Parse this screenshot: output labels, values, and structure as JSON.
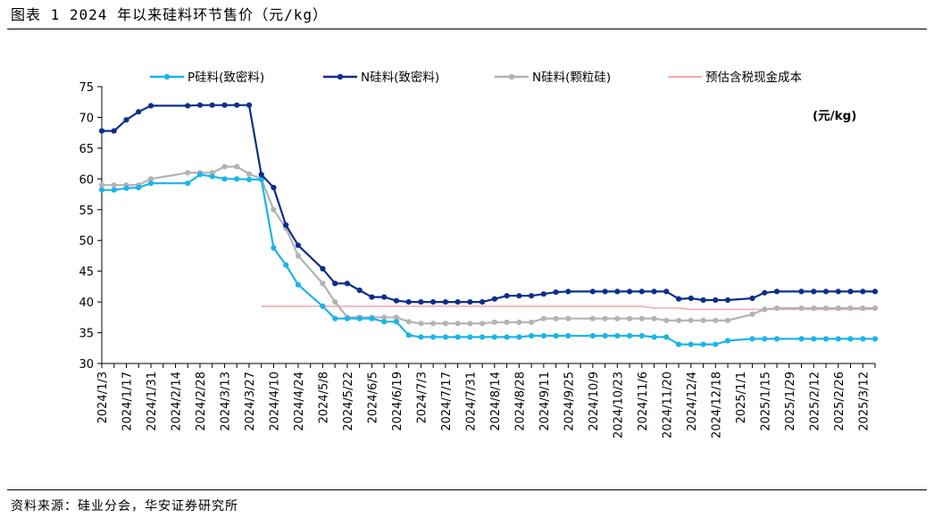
{
  "figure_title": "图表 1 2024 年以来硅料环节售价（元/kg）",
  "source_note": "资料来源：硅业分会，华安证券研究所",
  "chart_data": {
    "type": "line",
    "unit_label": "(元/kg)",
    "ylim": [
      30,
      75
    ],
    "yticks": [
      30,
      35,
      40,
      45,
      50,
      55,
      60,
      65,
      70,
      75
    ],
    "legend_position": "top",
    "x_tick_labels": [
      "2024/1/3",
      "2024/1/17",
      "2024/1/31",
      "2024/2/14",
      "2024/2/28",
      "2024/3/13",
      "2024/3/27",
      "2024/4/10",
      "2024/4/24",
      "2024/5/8",
      "2024/5/22",
      "2024/6/5",
      "2024/6/19",
      "2024/7/3",
      "2024/7/17",
      "2024/7/31",
      "2024/8/14",
      "2024/8/28",
      "2024/9/11",
      "2024/9/25",
      "2024/10/9",
      "2024/10/23",
      "2024/11/6",
      "2024/11/20",
      "2024/12/4",
      "2024/12/18",
      "2025/1/1",
      "2025/1/15",
      "2025/1/29",
      "2025/2/12",
      "2025/2/26",
      "2025/3/12"
    ],
    "x": [
      "2024/1/3",
      "2024/1/10",
      "2024/1/17",
      "2024/1/24",
      "2024/1/31",
      "2024/2/21",
      "2024/2/28",
      "2024/3/6",
      "2024/3/13",
      "2024/3/20",
      "2024/3/27",
      "2024/4/3",
      "2024/4/10",
      "2024/4/17",
      "2024/4/24",
      "2024/5/8",
      "2024/5/15",
      "2024/5/22",
      "2024/5/29",
      "2024/6/5",
      "2024/6/12",
      "2024/6/19",
      "2024/6/26",
      "2024/7/3",
      "2024/7/10",
      "2024/7/17",
      "2024/7/24",
      "2024/7/31",
      "2024/8/7",
      "2024/8/14",
      "2024/8/21",
      "2024/8/28",
      "2024/9/4",
      "2024/9/11",
      "2024/9/18",
      "2024/9/25",
      "2024/10/9",
      "2024/10/16",
      "2024/10/23",
      "2024/10/30",
      "2024/11/6",
      "2024/11/13",
      "2024/11/20",
      "2024/11/27",
      "2024/12/4",
      "2024/12/11",
      "2024/12/18",
      "2024/12/25",
      "2025/1/8",
      "2025/1/15",
      "2025/1/22",
      "2025/2/5",
      "2025/2/12",
      "2025/2/19",
      "2025/2/26",
      "2025/3/5",
      "2025/3/12",
      "2025/3/19"
    ],
    "series": [
      {
        "name": "P硅料(致密料)",
        "color": "#1cb4e8",
        "marker": "circle",
        "values": [
          58.2,
          58.2,
          58.5,
          58.6,
          59.3,
          59.3,
          60.7,
          60.4,
          60.0,
          60.0,
          59.9,
          59.9,
          48.8,
          46.0,
          42.8,
          39.3,
          37.3,
          37.3,
          37.3,
          37.3,
          36.8,
          36.8,
          34.6,
          34.3,
          34.3,
          34.3,
          34.3,
          34.3,
          34.3,
          34.3,
          34.3,
          34.3,
          34.5,
          34.5,
          34.5,
          34.5,
          34.5,
          34.5,
          34.5,
          34.5,
          34.5,
          34.3,
          34.3,
          33.1,
          33.1,
          33.1,
          33.1,
          33.7,
          34.0,
          34.0,
          34.0,
          34.0,
          34.0,
          34.0,
          34.0,
          34.0,
          34.0,
          34.0
        ]
      },
      {
        "name": "N硅料(致密料)",
        "color": "#0c2f8c",
        "marker": "circle",
        "values": [
          67.8,
          67.8,
          69.6,
          70.9,
          71.9,
          71.9,
          72.0,
          72.0,
          72.0,
          72.0,
          72.0,
          60.7,
          58.6,
          52.5,
          49.2,
          45.4,
          43.0,
          43.0,
          41.9,
          40.8,
          40.8,
          40.2,
          40.0,
          40.0,
          40.0,
          40.0,
          40.0,
          40.0,
          40.0,
          40.5,
          41.0,
          41.0,
          41.0,
          41.3,
          41.6,
          41.7,
          41.7,
          41.7,
          41.7,
          41.7,
          41.7,
          41.7,
          41.7,
          40.5,
          40.6,
          40.3,
          40.3,
          40.3,
          40.6,
          41.5,
          41.7,
          41.7,
          41.7,
          41.7,
          41.7,
          41.7,
          41.7,
          41.7
        ]
      },
      {
        "name": "N硅料(颗粒硅)",
        "color": "#b3b3b3",
        "marker": "circle",
        "values": [
          59.0,
          59.0,
          59.0,
          59.0,
          60.0,
          61.0,
          61.0,
          61.0,
          62.0,
          62.0,
          60.8,
          60.0,
          55.0,
          52.0,
          47.5,
          43.0,
          40.0,
          37.5,
          37.5,
          37.5,
          37.5,
          37.5,
          36.8,
          36.5,
          36.5,
          36.5,
          36.5,
          36.5,
          36.5,
          36.7,
          36.7,
          36.7,
          36.7,
          37.3,
          37.3,
          37.3,
          37.3,
          37.3,
          37.3,
          37.3,
          37.3,
          37.3,
          37.0,
          37.0,
          37.0,
          37.0,
          37.0,
          37.0,
          38.0,
          38.8,
          39.0,
          39.0,
          39.0,
          39.0,
          39.0,
          39.0,
          39.0,
          39.0
        ]
      },
      {
        "name": "预估含税现金成本",
        "color": "#f4aab3",
        "marker": "none",
        "values": [
          null,
          null,
          null,
          null,
          null,
          null,
          null,
          null,
          null,
          null,
          null,
          39.3,
          39.3,
          39.3,
          39.3,
          39.3,
          39.3,
          39.3,
          39.3,
          39.3,
          39.3,
          39.3,
          39.3,
          39.3,
          39.3,
          39.3,
          39.3,
          39.3,
          39.3,
          39.3,
          39.3,
          39.3,
          39.3,
          39.3,
          39.3,
          39.3,
          39.3,
          39.3,
          39.3,
          39.3,
          39.3,
          39.0,
          39.0,
          39.0,
          38.8,
          38.8,
          38.8,
          38.8,
          38.8,
          38.8,
          38.8,
          38.8,
          38.8,
          38.8,
          38.8,
          38.8,
          38.8,
          38.8
        ]
      }
    ]
  }
}
